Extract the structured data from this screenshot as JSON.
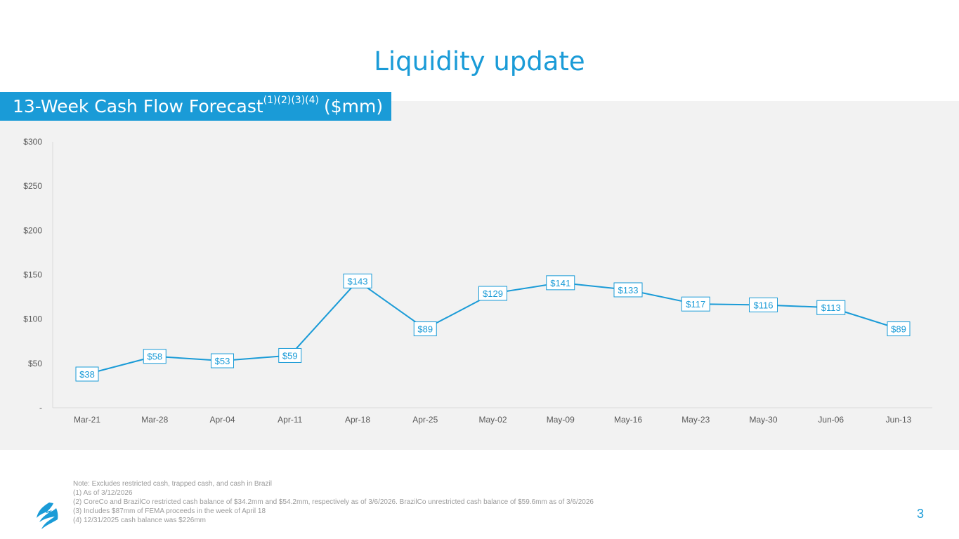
{
  "page": {
    "title": "Liquidity update",
    "banner": {
      "main": "13-Week Cash Flow Forecast",
      "footnote_refs": "(1)(2)(3)(4)",
      "unit": "($mm)"
    },
    "notes": [
      "Note: Excludes restricted cash, trapped cash, and cash in Brazil",
      "(1) As of 3/12/2026",
      "(2) CoreCo and BrazilCo restricted cash balance of $34.2mm and $54.2mm, respectively as of 3/6/2026. BrazilCo unrestricted cash balance of $59.6mm as of 3/6/2026",
      "(3) Includes $87mm of FEMA proceeds in the week of April 18",
      "(4) 12/31/2025 cash balance was $226mm"
    ],
    "page_number": "3",
    "colors": {
      "accent": "#1a9bd7",
      "panel": "#f2f2f2",
      "note_text": "#9a9a9a"
    },
    "logo_icon": "flame-logo-icon"
  },
  "chart_data": {
    "type": "line",
    "categories": [
      "Mar-21",
      "Mar-28",
      "Apr-04",
      "Apr-11",
      "Apr-18",
      "Apr-25",
      "May-02",
      "May-09",
      "May-16",
      "May-23",
      "May-30",
      "Jun-06",
      "Jun-13"
    ],
    "values": [
      38,
      58,
      53,
      59,
      143,
      89,
      129,
      141,
      133,
      117,
      116,
      113,
      89
    ],
    "data_labels": [
      "$38",
      "$58",
      "$53",
      "$59",
      "$143",
      "$89",
      "$129",
      "$141",
      "$133",
      "$117",
      "$116",
      "$113",
      "$89"
    ],
    "y_ticks": [
      0,
      50,
      100,
      150,
      200,
      250,
      300
    ],
    "y_tick_labels": [
      "-",
      "$50",
      "$100",
      "$150",
      "$200",
      "$250",
      "$300"
    ],
    "ylim": [
      0,
      300
    ],
    "title": "13-Week Cash Flow Forecast ($mm)",
    "xlabel": "",
    "ylabel": "",
    "grid": false,
    "legend": "none",
    "series_color": "#1a9bd7"
  }
}
